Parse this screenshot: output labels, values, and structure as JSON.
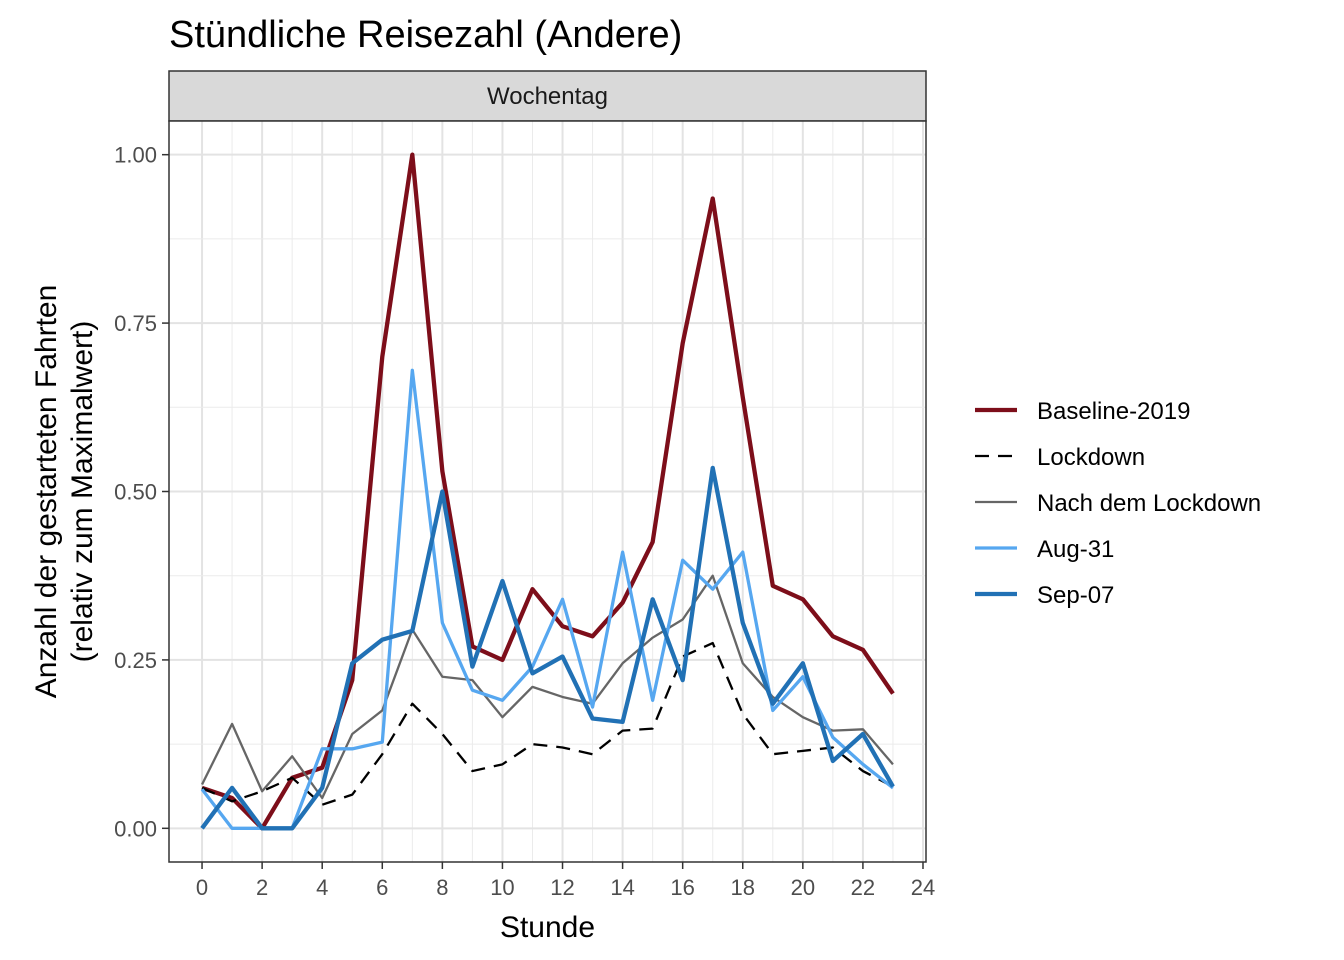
{
  "chart_data": {
    "type": "line",
    "title": "Stündliche Reisezahl (Andere)",
    "facet_label": "Wochentag",
    "xlabel": "Stunde",
    "ylabel_lines": [
      "Anzahl der gestarteten Fahrten",
      "(relativ zum Maximalwert)"
    ],
    "xlim": [
      -1.1,
      24.1
    ],
    "ylim": [
      -0.05,
      1.05
    ],
    "x_ticks": [
      0,
      2,
      4,
      6,
      8,
      10,
      12,
      14,
      16,
      18,
      20,
      22,
      24
    ],
    "x_tick_labels": [
      "0",
      "2",
      "4",
      "6",
      "8",
      "10",
      "12",
      "14",
      "16",
      "18",
      "20",
      "22",
      "24"
    ],
    "y_ticks": [
      0,
      0.25,
      0.5,
      0.75,
      1.0
    ],
    "y_tick_labels": [
      "0.00",
      "0.25",
      "0.50",
      "0.75",
      "1.00"
    ],
    "grid": true,
    "legend_position": "right",
    "x": [
      0,
      1,
      2,
      3,
      4,
      5,
      6,
      7,
      8,
      9,
      10,
      11,
      12,
      13,
      14,
      15,
      16,
      17,
      18,
      19,
      20,
      21,
      22,
      23
    ],
    "series": [
      {
        "name": "Baseline-2019",
        "color": "#7d0e1a",
        "style": "solid-thick",
        "values": [
          0.06,
          0.045,
          0.0,
          0.075,
          0.09,
          0.22,
          0.7,
          1.0,
          0.53,
          0.27,
          0.25,
          0.355,
          0.3,
          0.285,
          0.335,
          0.425,
          0.72,
          0.935,
          0.64,
          0.36,
          0.34,
          0.285,
          0.265,
          0.2
        ]
      },
      {
        "name": "Lockdown",
        "color": "#000000",
        "style": "dashed",
        "values": [
          0.06,
          0.04,
          0.055,
          0.075,
          0.035,
          0.05,
          0.11,
          0.185,
          0.14,
          0.085,
          0.095,
          0.125,
          0.12,
          0.11,
          0.145,
          0.148,
          0.255,
          0.275,
          0.17,
          0.11,
          0.115,
          0.12,
          0.085,
          0.062
        ]
      },
      {
        "name": "Nach dem Lockdown",
        "color": "#666666",
        "style": "solid-thin",
        "values": [
          0.065,
          0.155,
          0.055,
          0.107,
          0.045,
          0.14,
          0.175,
          0.295,
          0.225,
          0.22,
          0.165,
          0.21,
          0.195,
          0.185,
          0.245,
          0.283,
          0.31,
          0.375,
          0.245,
          0.195,
          0.165,
          0.145,
          0.147,
          0.095
        ]
      },
      {
        "name": "Aug-31",
        "color": "#56a7f0",
        "style": "solid-medium",
        "values": [
          0.058,
          0.0,
          0.0,
          0.0,
          0.118,
          0.118,
          0.128,
          0.68,
          0.305,
          0.205,
          0.19,
          0.24,
          0.34,
          0.18,
          0.41,
          0.19,
          0.398,
          0.355,
          0.41,
          0.175,
          0.225,
          0.135,
          0.095,
          0.06
        ]
      },
      {
        "name": "Sep-07",
        "color": "#2171b5",
        "style": "solid-thick",
        "values": [
          0.0,
          0.06,
          0.0,
          0.0,
          0.06,
          0.245,
          0.28,
          0.293,
          0.5,
          0.24,
          0.367,
          0.23,
          0.255,
          0.163,
          0.158,
          0.34,
          0.22,
          0.535,
          0.305,
          0.185,
          0.245,
          0.1,
          0.14,
          0.062
        ]
      }
    ]
  }
}
